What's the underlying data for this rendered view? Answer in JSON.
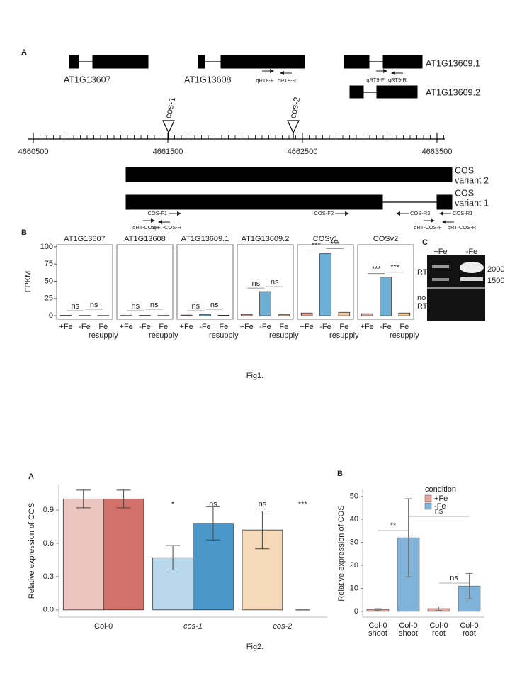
{
  "fig1": {
    "caption": "Fig1.",
    "panel_a": {
      "label": "A",
      "genes": [
        "AT1G13607",
        "AT1G13608",
        "AT1G13609.1",
        "AT1G13609.2"
      ],
      "primers_top": [
        "qRT8-F",
        "qRT8-R",
        "qRT9-F",
        "qRT9-R"
      ],
      "insertions": [
        "cos-1",
        "cos-2"
      ],
      "axis": {
        "lim": [
          4660463,
          4663558
        ],
        "ticks": [
          4660500,
          4661500,
          4662500,
          4663500
        ]
      },
      "variants": [
        [
          "COS",
          "variant 2"
        ],
        [
          "COS",
          "variant 1"
        ]
      ],
      "primers_bottom": [
        "COS-F1",
        "qRT-COS-F",
        "qRT-COS-R",
        "COS-F2",
        "COS-R3",
        "COS-R1",
        "qRT-COS-F",
        "qRT-COS-R"
      ]
    },
    "panel_c": {
      "label": "C",
      "lanes": [
        "+Fe",
        "-Fe"
      ],
      "rows": [
        [
          "RT"
        ],
        [
          "no",
          "RT"
        ]
      ],
      "markers": [
        "2000",
        "1500"
      ]
    }
  },
  "fig2": {
    "caption": "Fig2."
  },
  "chart_data": [
    {
      "type": "facet-bar",
      "label": "B",
      "ylabel": "FPKM",
      "categories": [
        [
          "+Fe"
        ],
        [
          "-Fe"
        ],
        [
          "Fe",
          "resupply"
        ]
      ],
      "colors": [
        "#e8a39c",
        "#6baed6",
        "#f5c99a"
      ],
      "ylim": [
        -5,
        103
      ],
      "yticks": [
        0,
        25,
        50,
        75,
        100
      ],
      "facets": [
        {
          "title": "AT1G13607",
          "values": [
            0.6,
            0.5,
            0.4
          ],
          "annotations": [
            "ns",
            "ns"
          ]
        },
        {
          "title": "AT1G13608",
          "values": [
            0.5,
            0.6,
            0.5
          ],
          "annotations": [
            "ns",
            "ns"
          ]
        },
        {
          "title": "AT1G13609.1",
          "values": [
            1,
            2,
            0.8
          ],
          "annotations": [
            "ns",
            "ns"
          ]
        },
        {
          "title": "AT1G13609.2",
          "values": [
            2,
            35,
            1.5
          ],
          "annotations": [
            "ns",
            "ns"
          ]
        },
        {
          "title": "COSv1",
          "values": [
            4,
            90,
            5
          ],
          "annotations": [
            "***",
            "***"
          ]
        },
        {
          "title": "COSv2",
          "values": [
            3,
            56,
            4
          ],
          "annotations": [
            "***",
            "***"
          ]
        }
      ]
    },
    {
      "type": "grouped-bar",
      "label": "A",
      "ylabel": "Relative expression of COS",
      "categories": [
        "Col-0",
        "cos-1",
        "cos-2"
      ],
      "category_style": [
        "normal",
        "italic",
        "italic"
      ],
      "ylim": [
        -0.065,
        1.13
      ],
      "yticks": [
        {
          "value": 0,
          "label": "0.0"
        },
        0.3,
        0.6,
        0.9
      ],
      "series": [
        {
          "colors": [
            "#ebc5c0",
            "#b9d8ec",
            "#f6d9b9"
          ],
          "values": [
            1,
            0.47,
            0.72
          ],
          "errors": [
            0.08,
            0.11,
            0.17
          ],
          "annotations": [
            null,
            "*",
            "ns"
          ]
        },
        {
          "colors": [
            "#d2706a",
            "#4a97c9",
            "#555555"
          ],
          "values": [
            1,
            0.78,
            0
          ],
          "errors": [
            0.08,
            0.15,
            0
          ],
          "annotations": [
            null,
            "ns",
            "***"
          ]
        }
      ]
    },
    {
      "type": "bar",
      "label": "B",
      "ylabel": "Relative expression of COS",
      "categories": [
        [
          "Col-0",
          "shoot"
        ],
        [
          "Col-0",
          "shoot"
        ],
        [
          "Col-0",
          "root"
        ],
        [
          "Col-0",
          "root"
        ]
      ],
      "ylim": [
        -2.5,
        53
      ],
      "yticks": [
        0,
        10,
        20,
        30,
        40,
        50
      ],
      "legend_title": "condition",
      "series": [
        {
          "name": "+Fe",
          "color": "#e8a39c",
          "values": [
            0.8,
            null,
            1.2,
            null
          ],
          "errors": [
            0.4,
            null,
            0.8,
            null
          ]
        },
        {
          "name": "-Fe",
          "color": "#7fb3d9",
          "values": [
            null,
            32,
            null,
            11
          ],
          "errors": [
            null,
            17,
            null,
            5.5
          ]
        }
      ],
      "annotations": [
        "**",
        "ns",
        "ns"
      ]
    }
  ]
}
